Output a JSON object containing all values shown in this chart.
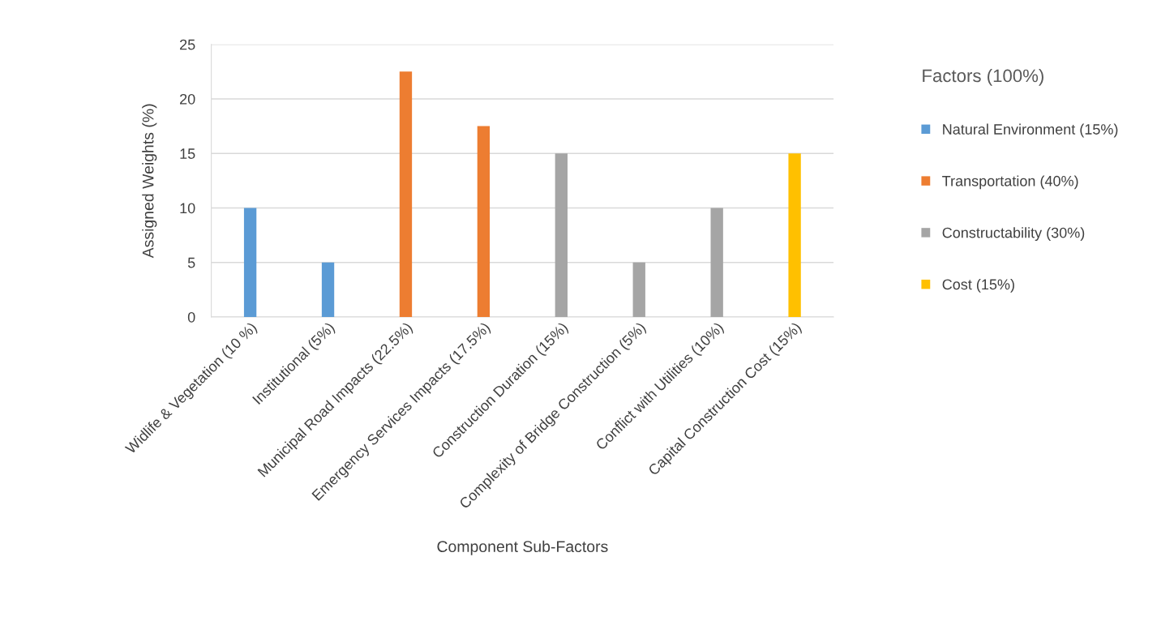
{
  "chart_data": {
    "type": "bar",
    "stacked": true,
    "categories": [
      "Widlife & Vegetation (10 %)",
      "Institutional (5%)",
      "Municipal Road Impacts (22.5%)",
      "Emergency Services Impacts (17.5%)",
      "Construction Duration (15%)",
      "Complexity of Bridge Construction (5%)",
      "Conflict with Utilities (10%)",
      "Capital Construction Cost (15%)"
    ],
    "series": [
      {
        "name": "Natural Environment (15%)",
        "color": "#5b9bd5",
        "values": [
          10,
          5,
          null,
          null,
          null,
          null,
          null,
          null
        ]
      },
      {
        "name": "Transportation (40%)",
        "color": "#ed7d31",
        "values": [
          null,
          null,
          22.5,
          17.5,
          null,
          null,
          null,
          null
        ]
      },
      {
        "name": "Constructability (30%)",
        "color": "#a5a5a5",
        "values": [
          null,
          null,
          null,
          null,
          15,
          5,
          10,
          null
        ]
      },
      {
        "name": "Cost (15%)",
        "color": "#ffc000",
        "values": [
          null,
          null,
          null,
          null,
          null,
          null,
          null,
          15
        ]
      }
    ],
    "xlabel": "Component Sub-Factors",
    "ylabel": "Assigned Weights (%)",
    "legend_title": "Factors (100%)",
    "ylim": [
      0,
      25
    ],
    "yticks": [
      0,
      5,
      10,
      15,
      20,
      25
    ],
    "grid": "y",
    "legend": "right"
  }
}
